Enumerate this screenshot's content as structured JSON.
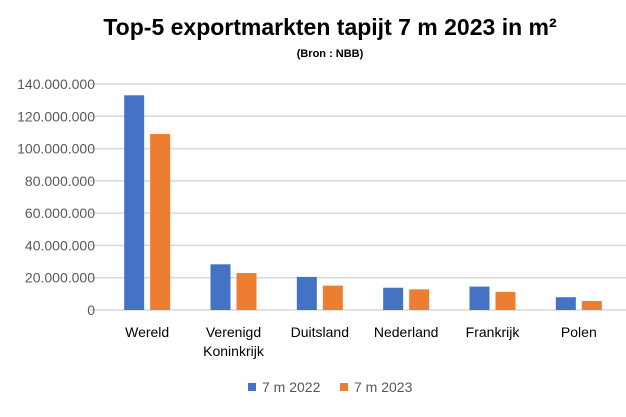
{
  "chart_data": {
    "type": "bar",
    "title": "Top-5 exportmarkten tapijt 7 m 2023 in m²",
    "subtitle": "(Bron : NBB)",
    "xlabel": "",
    "ylabel": "",
    "ylim": [
      0,
      140000000
    ],
    "yticks": [
      0,
      20000000,
      40000000,
      60000000,
      80000000,
      100000000,
      120000000,
      140000000
    ],
    "ytick_labels": [
      "0",
      "20.000.000",
      "40.000.000",
      "60.000.000",
      "80.000.000",
      "100.000.000",
      "120.000.000",
      "140.000.000"
    ],
    "grid": true,
    "legend_position": "bottom",
    "categories": [
      [
        "Wereld"
      ],
      [
        "Verenigd",
        "Koninkrijk"
      ],
      [
        "Duitsland"
      ],
      [
        "Nederland"
      ],
      [
        "Frankrijk"
      ],
      [
        "Polen"
      ]
    ],
    "series": [
      {
        "name": "7 m 2022",
        "color": "#4472C4",
        "values": [
          133000000,
          28300000,
          20500000,
          13800000,
          14500000,
          7900000
        ]
      },
      {
        "name": "7 m 2023",
        "color": "#ED7D31",
        "values": [
          109000000,
          22900000,
          15100000,
          12800000,
          11200000,
          5600000
        ]
      }
    ]
  }
}
